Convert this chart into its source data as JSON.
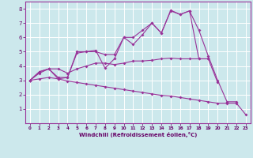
{
  "title": "",
  "xlabel": "Windchill (Refroidissement éolien,°C)",
  "bg_color": "#cce8ec",
  "grid_color": "#ffffff",
  "line_color": "#993399",
  "axis_label_color": "#660066",
  "tick_label_color": "#660066",
  "spine_color": "#993399",
  "xlim": [
    -0.5,
    23.5
  ],
  "ylim": [
    0,
    8.5
  ],
  "yticks": [
    1,
    2,
    3,
    4,
    5,
    6,
    7,
    8
  ],
  "xticks": [
    0,
    1,
    2,
    3,
    4,
    5,
    6,
    7,
    8,
    9,
    10,
    11,
    12,
    13,
    14,
    15,
    16,
    17,
    18,
    19,
    20,
    21,
    22,
    23
  ],
  "line1_x": [
    0,
    1,
    2,
    3,
    4,
    5,
    6,
    7,
    8,
    9,
    10,
    11,
    12,
    13,
    14,
    15,
    16,
    17,
    18,
    19,
    20,
    21,
    22
  ],
  "line1_y": [
    3.0,
    3.6,
    3.8,
    3.1,
    3.2,
    4.9,
    5.0,
    5.0,
    4.8,
    4.8,
    6.0,
    6.0,
    6.5,
    7.0,
    6.3,
    7.9,
    7.6,
    7.85,
    6.5,
    4.7,
    3.0,
    1.5,
    1.5
  ],
  "line2_x": [
    0,
    1,
    2,
    3,
    4,
    5,
    6,
    7,
    8,
    9,
    10,
    11,
    12,
    13,
    14,
    15,
    16,
    17,
    18,
    19,
    20
  ],
  "line2_y": [
    3.0,
    3.6,
    3.8,
    3.2,
    3.2,
    5.0,
    5.0,
    5.1,
    3.85,
    4.5,
    6.0,
    5.5,
    6.2,
    7.0,
    6.3,
    7.85,
    7.6,
    7.85,
    4.5,
    4.5,
    2.85
  ],
  "line3_x": [
    0,
    1,
    2,
    3,
    4,
    5,
    6,
    7,
    8,
    9,
    10,
    11,
    12,
    13,
    14,
    15,
    16,
    17,
    18,
    19
  ],
  "line3_y": [
    3.0,
    3.5,
    3.8,
    3.8,
    3.5,
    3.8,
    4.0,
    4.2,
    4.2,
    4.1,
    4.2,
    4.35,
    4.35,
    4.4,
    4.5,
    4.55,
    4.5,
    4.5,
    4.5,
    4.5
  ],
  "line4_x": [
    0,
    1,
    2,
    3,
    4,
    5,
    6,
    7,
    8,
    9,
    10,
    11,
    12,
    13,
    14,
    15,
    16,
    17,
    18,
    19,
    20,
    21,
    22,
    23
  ],
  "line4_y": [
    3.0,
    3.1,
    3.2,
    3.1,
    2.95,
    2.85,
    2.75,
    2.65,
    2.55,
    2.45,
    2.35,
    2.25,
    2.15,
    2.05,
    1.95,
    1.9,
    1.8,
    1.7,
    1.6,
    1.5,
    1.4,
    1.4,
    1.4,
    0.6
  ]
}
